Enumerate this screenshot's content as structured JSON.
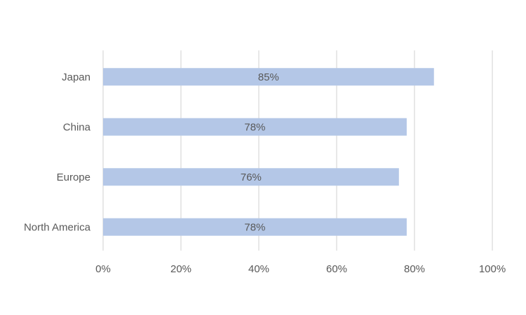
{
  "chart_data": {
    "type": "bar",
    "orientation": "horizontal",
    "categories": [
      "Japan",
      "China",
      "Europe",
      "North America"
    ],
    "values": [
      85,
      78,
      76,
      78
    ],
    "data_labels": [
      "85%",
      "78%",
      "76%",
      "78%"
    ],
    "x_ticks": [
      "0%",
      "20%",
      "40%",
      "60%",
      "80%",
      "100%"
    ],
    "xlim": [
      0,
      100
    ],
    "grid": "vertical",
    "legend": "none",
    "colors": {
      "bar": "#b4c7e7",
      "grid": "#d9d9d9",
      "text": "#595959"
    }
  }
}
